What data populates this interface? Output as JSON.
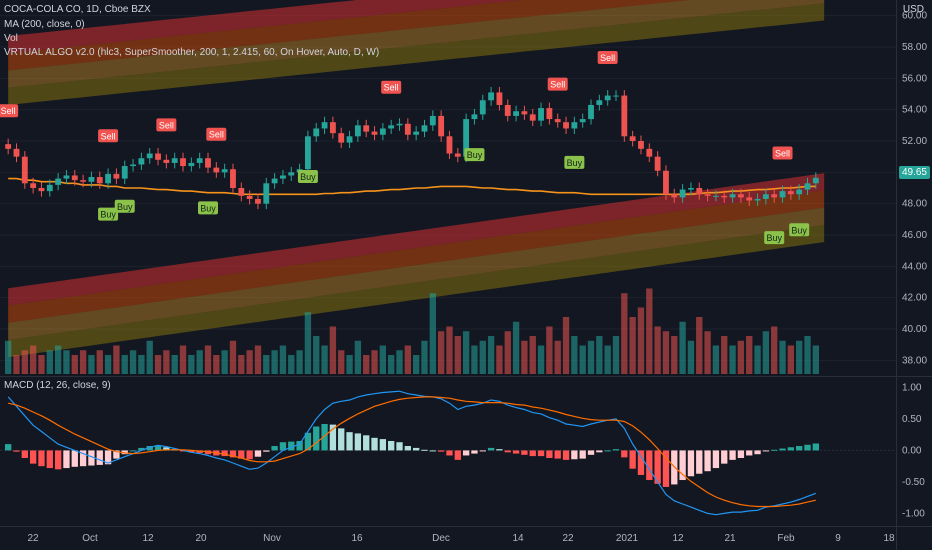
{
  "header": {
    "symbol": "COCA-COLA CO, 1D, Cboe BZX",
    "ma_label": "MA (200, close, 0)",
    "vol_label": "Vol",
    "algo_label": "VRTUAL ALGO v2.0 (hlc3, SuperSmoother, 200, 1, 2.415, 60, On Hover, Auto, D, W)",
    "currency": "USD"
  },
  "macd": {
    "label": "MACD (12, 26, close, 9)"
  },
  "colors": {
    "background": "#131722",
    "up": "#26a69a",
    "down": "#ef5350",
    "ma": "#f7931a",
    "buy": "#8bc34a",
    "sell": "#f05350",
    "macd_line": "#2196f3",
    "signal_line": "#ff6d00"
  },
  "current_price": "49.65",
  "chart_data": [
    {
      "type": "candlestick",
      "title": "COCA-COLA CO, 1D, Cboe BZX",
      "y_axis_ticks": [
        "38.00",
        "40.00",
        "42.00",
        "44.00",
        "46.00",
        "48.00",
        "50.00",
        "52.00",
        "54.00",
        "56.00",
        "58.00",
        "60.00"
      ],
      "ylim": [
        37,
        61
      ],
      "x_axis_ticks": [
        "22",
        "Oct",
        "12",
        "20",
        "Nov",
        "16",
        "Dec",
        "14",
        "22",
        "2021",
        "12",
        "21",
        "Feb",
        "9",
        "18"
      ],
      "dates": [
        "Sep 17",
        "Sep 18",
        "Sep 21",
        "Sep 22",
        "Sep 23",
        "Sep 24",
        "Sep 25",
        "Sep 28",
        "Sep 29",
        "Sep 30",
        "Oct 1",
        "Oct 2",
        "Oct 5",
        "Oct 6",
        "Oct 7",
        "Oct 8",
        "Oct 9",
        "Oct 12",
        "Oct 13",
        "Oct 14",
        "Oct 15",
        "Oct 16",
        "Oct 19",
        "Oct 20",
        "Oct 21",
        "Oct 22",
        "Oct 23",
        "Oct 26",
        "Oct 27",
        "Oct 28",
        "Oct 29",
        "Oct 30",
        "Nov 2",
        "Nov 3",
        "Nov 4",
        "Nov 5",
        "Nov 6",
        "Nov 9",
        "Nov 10",
        "Nov 11",
        "Nov 12",
        "Nov 13",
        "Nov 16",
        "Nov 17",
        "Nov 18",
        "Nov 19",
        "Nov 20",
        "Nov 23",
        "Nov 24",
        "Nov 25",
        "Nov 27",
        "Nov 30",
        "Dec 1",
        "Dec 2",
        "Dec 3",
        "Dec 4",
        "Dec 7",
        "Dec 8",
        "Dec 9",
        "Dec 10",
        "Dec 11",
        "Dec 14",
        "Dec 15",
        "Dec 16",
        "Dec 17",
        "Dec 18",
        "Dec 21",
        "Dec 22",
        "Dec 23",
        "Dec 24",
        "Dec 28",
        "Dec 29",
        "Dec 30",
        "Dec 31",
        "Jan 4",
        "Jan 5",
        "Jan 6",
        "Jan 7",
        "Jan 8",
        "Jan 11",
        "Jan 12",
        "Jan 13",
        "Jan 14",
        "Jan 15",
        "Jan 19",
        "Jan 20",
        "Jan 21",
        "Jan 22",
        "Jan 25",
        "Jan 26",
        "Jan 27",
        "Jan 28",
        "Jan 29",
        "Feb 1",
        "Feb 2",
        "Feb 3",
        "Feb 4",
        "Feb 5"
      ],
      "close": [
        51.5,
        51.0,
        49.3,
        49.0,
        48.8,
        49.2,
        49.6,
        49.8,
        49.5,
        49.4,
        49.7,
        49.3,
        49.9,
        49.6,
        50.4,
        50.5,
        50.9,
        51.2,
        50.8,
        50.6,
        50.9,
        50.4,
        50.6,
        50.9,
        50.3,
        50.0,
        50.2,
        49.0,
        48.5,
        48.3,
        48.0,
        49.3,
        49.6,
        49.8,
        50.0,
        50.2,
        52.3,
        52.8,
        53.2,
        52.5,
        51.9,
        52.3,
        53.0,
        52.6,
        52.4,
        52.8,
        53.0,
        53.1,
        52.4,
        52.6,
        53.0,
        53.6,
        52.3,
        51.2,
        51.0,
        53.4,
        53.7,
        54.6,
        55.1,
        54.3,
        53.6,
        53.9,
        53.7,
        53.3,
        54.1,
        53.4,
        53.2,
        52.8,
        53.2,
        53.4,
        54.3,
        54.6,
        54.9,
        54.9,
        52.3,
        52.0,
        51.5,
        51.0,
        50.1,
        48.6,
        48.4,
        48.9,
        49.0,
        48.6,
        48.5,
        48.5,
        48.4,
        48.6,
        48.4,
        48.2,
        48.3,
        48.6,
        48.4,
        48.8,
        48.6,
        48.9,
        49.3,
        49.65
      ],
      "ma200": [
        49.6,
        49.6,
        49.5,
        49.5,
        49.4,
        49.4,
        49.4,
        49.3,
        49.3,
        49.2,
        49.2,
        49.2,
        49.1,
        49.1,
        49.0,
        49.0,
        49.0,
        48.95,
        48.9,
        48.9,
        48.85,
        48.8,
        48.8,
        48.75,
        48.7,
        48.7,
        48.7,
        48.65,
        48.6,
        48.6,
        48.6,
        48.6,
        48.6,
        48.6,
        48.6,
        48.6,
        48.6,
        48.6,
        48.65,
        48.65,
        48.7,
        48.7,
        48.75,
        48.8,
        48.8,
        48.85,
        48.9,
        48.9,
        48.95,
        49.0,
        49.0,
        49.05,
        49.1,
        49.1,
        49.1,
        49.1,
        49.05,
        49.0,
        49.0,
        48.95,
        48.9,
        48.9,
        48.85,
        48.8,
        48.8,
        48.75,
        48.7,
        48.7,
        48.7,
        48.65,
        48.6,
        48.6,
        48.6,
        48.6,
        48.6,
        48.6,
        48.6,
        48.6,
        48.6,
        48.6,
        48.6,
        48.6,
        48.6,
        48.65,
        48.7,
        48.7,
        48.75,
        48.8,
        48.8,
        48.85,
        48.9,
        48.9,
        48.95,
        49.0,
        49.0,
        49.05,
        49.1,
        49.1
      ],
      "signals": [
        {
          "type": "sell",
          "label": "Sell",
          "date": "Sep 17"
        },
        {
          "type": "sell",
          "label": "Sell",
          "date": "Oct 5"
        },
        {
          "type": "sell",
          "label": "Sell",
          "date": "Oct 14"
        },
        {
          "type": "sell",
          "label": "Sell",
          "date": "Oct 22"
        },
        {
          "type": "sell",
          "label": "Sell",
          "date": "Nov 20"
        },
        {
          "type": "sell",
          "label": "Sell",
          "date": "Dec 21"
        },
        {
          "type": "sell",
          "label": "Sell",
          "date": "Dec 30"
        },
        {
          "type": "sell",
          "label": "Sell",
          "date": "Feb 1"
        },
        {
          "type": "buy",
          "label": "Buy",
          "date": "Oct 5"
        },
        {
          "type": "buy",
          "label": "Buy",
          "date": "Oct 7"
        },
        {
          "type": "buy",
          "label": "Buy",
          "date": "Oct 21"
        },
        {
          "type": "buy",
          "label": "Buy",
          "date": "Nov 6"
        },
        {
          "type": "buy",
          "label": "Buy",
          "date": "Dec 7"
        },
        {
          "type": "buy",
          "label": "Buy",
          "date": "Dec 23"
        },
        {
          "type": "buy",
          "label": "Buy",
          "date": "Jan 29"
        },
        {
          "type": "buy",
          "label": "Buy",
          "date": "Feb 3"
        }
      ],
      "volume_relative": [
        0.35,
        0.2,
        0.25,
        0.3,
        0.2,
        0.25,
        0.3,
        0.25,
        0.2,
        0.25,
        0.2,
        0.25,
        0.2,
        0.3,
        0.2,
        0.25,
        0.2,
        0.35,
        0.2,
        0.25,
        0.2,
        0.3,
        0.2,
        0.25,
        0.3,
        0.2,
        0.25,
        0.35,
        0.2,
        0.25,
        0.3,
        0.2,
        0.25,
        0.3,
        0.2,
        0.25,
        0.65,
        0.4,
        0.3,
        0.5,
        0.25,
        0.2,
        0.35,
        0.2,
        0.25,
        0.3,
        0.2,
        0.25,
        0.3,
        0.2,
        0.35,
        0.85,
        0.45,
        0.5,
        0.4,
        0.45,
        0.3,
        0.35,
        0.4,
        0.3,
        0.45,
        0.55,
        0.35,
        0.4,
        0.3,
        0.5,
        0.35,
        0.6,
        0.4,
        0.3,
        0.35,
        0.4,
        0.3,
        0.4,
        0.85,
        0.6,
        0.7,
        0.9,
        0.5,
        0.45,
        0.4,
        0.55,
        0.35,
        0.6,
        0.45,
        0.3,
        0.4,
        0.3,
        0.35,
        0.4,
        0.3,
        0.45,
        0.5,
        0.35,
        0.3,
        0.35,
        0.4,
        0.3
      ]
    },
    {
      "type": "line",
      "title": "MACD (12, 26, close, 9)",
      "y_axis_ticks": [
        "1.00",
        "0.50",
        "0.00",
        "-0.50",
        "-1.00"
      ],
      "ylim": [
        -1.2,
        1.15
      ],
      "series": [
        {
          "name": "MACD",
          "values": [
            0.85,
            0.7,
            0.55,
            0.4,
            0.3,
            0.2,
            0.1,
            0.05,
            0.0,
            -0.05,
            -0.1,
            -0.15,
            -0.2,
            -0.15,
            -0.1,
            -0.05,
            0.0,
            0.05,
            0.08,
            0.06,
            0.03,
            0.0,
            -0.03,
            -0.05,
            -0.08,
            -0.12,
            -0.15,
            -0.2,
            -0.25,
            -0.3,
            -0.28,
            -0.2,
            -0.1,
            0.0,
            0.05,
            0.1,
            0.3,
            0.5,
            0.65,
            0.75,
            0.78,
            0.8,
            0.85,
            0.88,
            0.9,
            0.92,
            0.93,
            0.94,
            0.9,
            0.88,
            0.86,
            0.85,
            0.82,
            0.75,
            0.65,
            0.7,
            0.72,
            0.75,
            0.8,
            0.78,
            0.72,
            0.68,
            0.65,
            0.6,
            0.58,
            0.52,
            0.48,
            0.42,
            0.4,
            0.38,
            0.42,
            0.45,
            0.48,
            0.5,
            0.35,
            0.1,
            -0.1,
            -0.3,
            -0.5,
            -0.7,
            -0.8,
            -0.85,
            -0.9,
            -0.95,
            -1.0,
            -1.02,
            -1.0,
            -0.98,
            -0.98,
            -0.96,
            -0.95,
            -0.9,
            -0.88,
            -0.85,
            -0.82,
            -0.78,
            -0.73,
            -0.68
          ]
        },
        {
          "name": "Signal",
          "values": [
            0.75,
            0.72,
            0.67,
            0.61,
            0.55,
            0.48,
            0.4,
            0.33,
            0.26,
            0.2,
            0.14,
            0.08,
            0.02,
            -0.02,
            -0.04,
            -0.05,
            -0.04,
            -0.02,
            0.0,
            0.01,
            0.01,
            0.01,
            0.0,
            -0.01,
            -0.02,
            -0.04,
            -0.06,
            -0.09,
            -0.12,
            -0.16,
            -0.18,
            -0.18,
            -0.17,
            -0.13,
            -0.09,
            -0.05,
            0.02,
            0.12,
            0.23,
            0.34,
            0.43,
            0.51,
            0.58,
            0.64,
            0.7,
            0.74,
            0.78,
            0.81,
            0.83,
            0.84,
            0.85,
            0.85,
            0.84,
            0.83,
            0.8,
            0.78,
            0.77,
            0.76,
            0.76,
            0.76,
            0.75,
            0.73,
            0.72,
            0.69,
            0.67,
            0.64,
            0.61,
            0.57,
            0.54,
            0.51,
            0.49,
            0.48,
            0.48,
            0.48,
            0.46,
            0.39,
            0.29,
            0.17,
            0.03,
            -0.12,
            -0.26,
            -0.38,
            -0.49,
            -0.58,
            -0.67,
            -0.74,
            -0.79,
            -0.83,
            -0.86,
            -0.88,
            -0.89,
            -0.89,
            -0.89,
            -0.88,
            -0.87,
            -0.85,
            -0.82,
            -0.79
          ]
        }
      ],
      "histogram": [
        0.1,
        -0.02,
        -0.12,
        -0.21,
        -0.25,
        -0.28,
        -0.3,
        -0.28,
        -0.26,
        -0.25,
        -0.24,
        -0.23,
        -0.22,
        -0.13,
        -0.06,
        0.0,
        0.04,
        0.07,
        0.08,
        0.05,
        0.02,
        -0.01,
        -0.03,
        -0.04,
        -0.06,
        -0.08,
        -0.09,
        -0.11,
        -0.13,
        -0.14,
        -0.1,
        -0.02,
        0.07,
        0.13,
        0.14,
        0.15,
        0.28,
        0.38,
        0.42,
        0.41,
        0.35,
        0.29,
        0.27,
        0.24,
        0.2,
        0.18,
        0.15,
        0.13,
        0.07,
        0.04,
        0.01,
        0.0,
        -0.02,
        -0.08,
        -0.15,
        -0.08,
        -0.05,
        -0.01,
        0.04,
        0.02,
        -0.03,
        -0.05,
        -0.07,
        -0.09,
        -0.09,
        -0.12,
        -0.13,
        -0.15,
        -0.14,
        -0.13,
        -0.07,
        -0.03,
        0.0,
        0.02,
        -0.11,
        -0.29,
        -0.39,
        -0.47,
        -0.53,
        -0.58,
        -0.54,
        -0.47,
        -0.41,
        -0.37,
        -0.33,
        -0.28,
        -0.21,
        -0.15,
        -0.12,
        -0.08,
        -0.06,
        -0.01,
        0.01,
        0.03,
        0.05,
        0.07,
        0.09,
        0.11
      ]
    }
  ]
}
